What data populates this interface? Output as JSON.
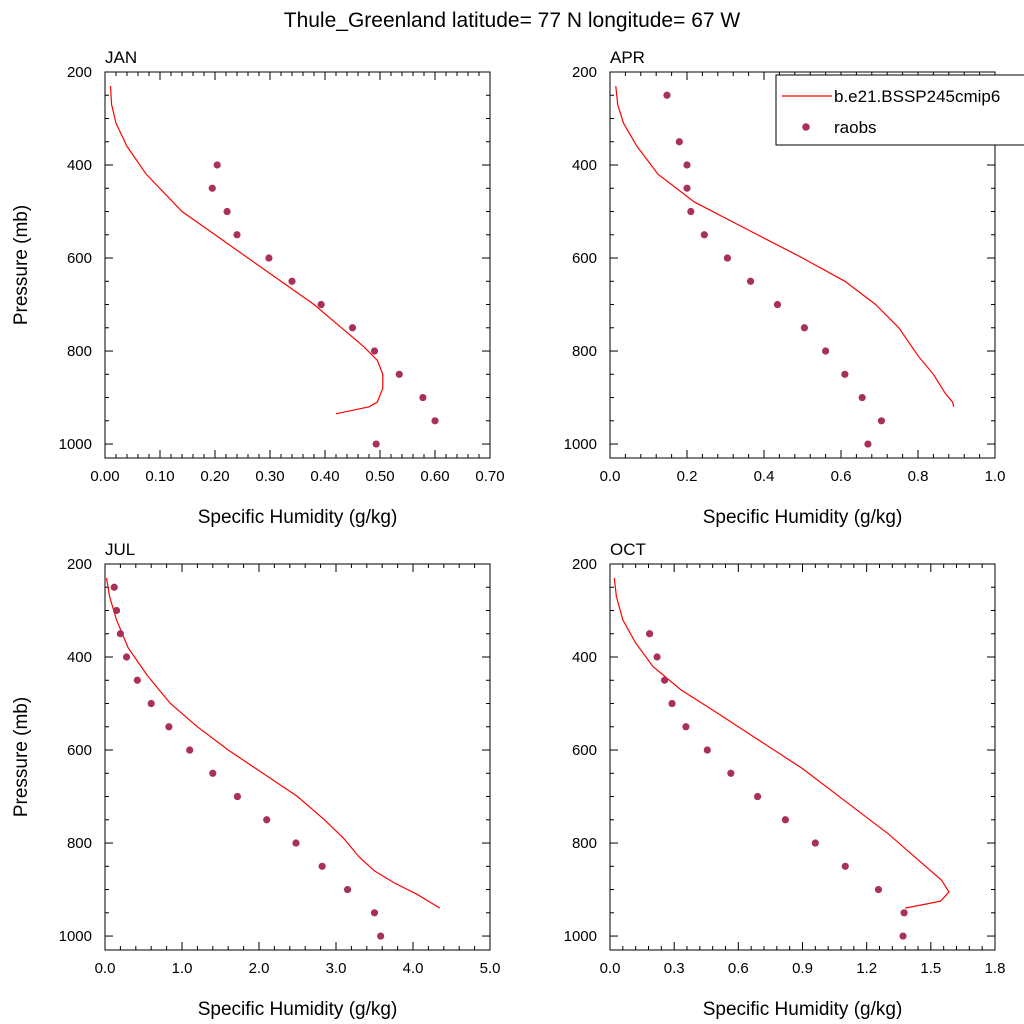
{
  "figure": {
    "title": "Thule_Greenland  latitude= 77 N longitude= 67 W"
  },
  "legend": {
    "model_label": "b.e21.BSSP245cmip6",
    "obs_label": "raobs",
    "model_color": "#ff0000",
    "obs_color": "#a8305a"
  },
  "chart_data": [
    {
      "type": "line",
      "panel_label": "JAN",
      "xlabel": "Specific Humidity (g/kg)",
      "ylabel": "Pressure (mb)",
      "xlim": [
        0,
        0.7
      ],
      "ylim": [
        200,
        1030
      ],
      "y_inverted": true,
      "xticks": [
        0,
        0.1,
        0.2,
        0.3,
        0.4,
        0.5,
        0.6,
        0.7
      ],
      "xtick_labels": [
        "0.00",
        "0.10",
        "0.20",
        "0.30",
        "0.40",
        "0.50",
        "0.60",
        "0.70"
      ],
      "yticks": [
        200,
        400,
        600,
        800,
        1000
      ],
      "ytick_labels": [
        "200",
        "400",
        "600",
        "800",
        "1000"
      ],
      "series": [
        {
          "name": "b.e21.BSSP245cmip6",
          "kind": "line",
          "x": [
            0.01,
            0.012,
            0.02,
            0.04,
            0.075,
            0.14,
            0.2,
            0.26,
            0.32,
            0.38,
            0.43,
            0.47,
            0.495,
            0.505,
            0.505,
            0.495,
            0.48,
            0.42
          ],
          "y": [
            230,
            270,
            310,
            360,
            420,
            500,
            550,
            600,
            650,
            700,
            750,
            790,
            820,
            850,
            880,
            910,
            920,
            935
          ]
        },
        {
          "name": "raobs",
          "kind": "scatter",
          "x": [
            0.204,
            0.195,
            0.222,
            0.24,
            0.298,
            0.34,
            0.393,
            0.45,
            0.49,
            0.535,
            0.578,
            0.6,
            0.493
          ],
          "y": [
            400,
            450,
            500,
            550,
            600,
            650,
            700,
            750,
            800,
            850,
            900,
            950,
            1000
          ]
        }
      ]
    },
    {
      "type": "line",
      "panel_label": "APR",
      "xlabel": "Specific Humidity (g/kg)",
      "ylabel": "",
      "xlim": [
        0,
        1.0
      ],
      "ylim": [
        200,
        1030
      ],
      "y_inverted": true,
      "xticks": [
        0,
        0.2,
        0.4,
        0.6,
        0.8,
        1.0
      ],
      "xtick_labels": [
        "0.0",
        "0.2",
        "0.4",
        "0.6",
        "0.8",
        "1.0"
      ],
      "yticks": [
        200,
        400,
        600,
        800,
        1000
      ],
      "ytick_labels": [
        "200",
        "400",
        "600",
        "800",
        "1000"
      ],
      "series": [
        {
          "name": "b.e21.BSSP245cmip6",
          "kind": "line",
          "x": [
            0.015,
            0.02,
            0.035,
            0.07,
            0.125,
            0.22,
            0.36,
            0.5,
            0.61,
            0.69,
            0.75,
            0.8,
            0.84,
            0.87,
            0.89,
            0.893
          ],
          "y": [
            230,
            270,
            310,
            360,
            420,
            480,
            540,
            600,
            650,
            700,
            750,
            810,
            850,
            890,
            910,
            920
          ]
        },
        {
          "name": "raobs",
          "kind": "scatter",
          "x": [
            0.148,
            0.18,
            0.2,
            0.2,
            0.21,
            0.245,
            0.305,
            0.365,
            0.435,
            0.505,
            0.56,
            0.61,
            0.655,
            0.705,
            0.67
          ],
          "y": [
            250,
            350,
            400,
            450,
            500,
            550,
            600,
            650,
            700,
            750,
            800,
            850,
            900,
            950,
            1000
          ]
        }
      ]
    },
    {
      "type": "line",
      "panel_label": "JUL",
      "xlabel": "Specific Humidity (g/kg)",
      "ylabel": "Pressure (mb)",
      "xlim": [
        0,
        5.0
      ],
      "ylim": [
        200,
        1030
      ],
      "y_inverted": true,
      "xticks": [
        0,
        1,
        2,
        3,
        4,
        5
      ],
      "xtick_labels": [
        "0.0",
        "1.0",
        "2.0",
        "3.0",
        "4.0",
        "5.0"
      ],
      "yticks": [
        200,
        400,
        600,
        800,
        1000
      ],
      "ytick_labels": [
        "200",
        "400",
        "600",
        "800",
        "1000"
      ],
      "series": [
        {
          "name": "b.e21.BSSP245cmip6",
          "kind": "line",
          "x": [
            0.02,
            0.06,
            0.15,
            0.3,
            0.55,
            0.85,
            1.2,
            1.6,
            2.05,
            2.5,
            2.85,
            3.1,
            3.3,
            3.5,
            3.75,
            4.05,
            4.35
          ],
          "y": [
            230,
            270,
            320,
            380,
            440,
            500,
            550,
            600,
            650,
            700,
            750,
            790,
            830,
            860,
            885,
            910,
            940
          ]
        },
        {
          "name": "raobs",
          "kind": "scatter",
          "x": [
            0.12,
            0.15,
            0.2,
            0.28,
            0.42,
            0.6,
            0.83,
            1.1,
            1.4,
            1.72,
            2.1,
            2.48,
            2.82,
            3.15,
            3.5,
            3.58
          ],
          "y": [
            250,
            300,
            350,
            400,
            450,
            500,
            550,
            600,
            650,
            700,
            750,
            800,
            850,
            900,
            950,
            1000
          ]
        }
      ]
    },
    {
      "type": "line",
      "panel_label": "OCT",
      "xlabel": "Specific Humidity (g/kg)",
      "ylabel": "",
      "xlim": [
        0,
        1.8
      ],
      "ylim": [
        200,
        1030
      ],
      "y_inverted": true,
      "xticks": [
        0,
        0.3,
        0.6,
        0.9,
        1.2,
        1.5,
        1.8
      ],
      "xtick_labels": [
        "0.0",
        "0.3",
        "0.6",
        "0.9",
        "1.2",
        "1.5",
        "1.8"
      ],
      "yticks": [
        200,
        400,
        600,
        800,
        1000
      ],
      "ytick_labels": [
        "200",
        "400",
        "600",
        "800",
        "1000"
      ],
      "series": [
        {
          "name": "b.e21.BSSP245cmip6",
          "kind": "line",
          "x": [
            0.02,
            0.03,
            0.06,
            0.12,
            0.2,
            0.33,
            0.5,
            0.7,
            0.9,
            1.1,
            1.3,
            1.45,
            1.55,
            1.585,
            1.545,
            1.38
          ],
          "y": [
            230,
            270,
            320,
            370,
            420,
            470,
            520,
            580,
            640,
            710,
            780,
            840,
            880,
            905,
            925,
            940
          ]
        },
        {
          "name": "raobs",
          "kind": "scatter",
          "x": [
            0.185,
            0.22,
            0.255,
            0.29,
            0.355,
            0.455,
            0.565,
            0.69,
            0.82,
            0.96,
            1.1,
            1.255,
            1.375,
            1.37
          ],
          "y": [
            350,
            400,
            450,
            500,
            550,
            600,
            650,
            700,
            750,
            800,
            850,
            900,
            950,
            1000
          ]
        }
      ]
    }
  ]
}
